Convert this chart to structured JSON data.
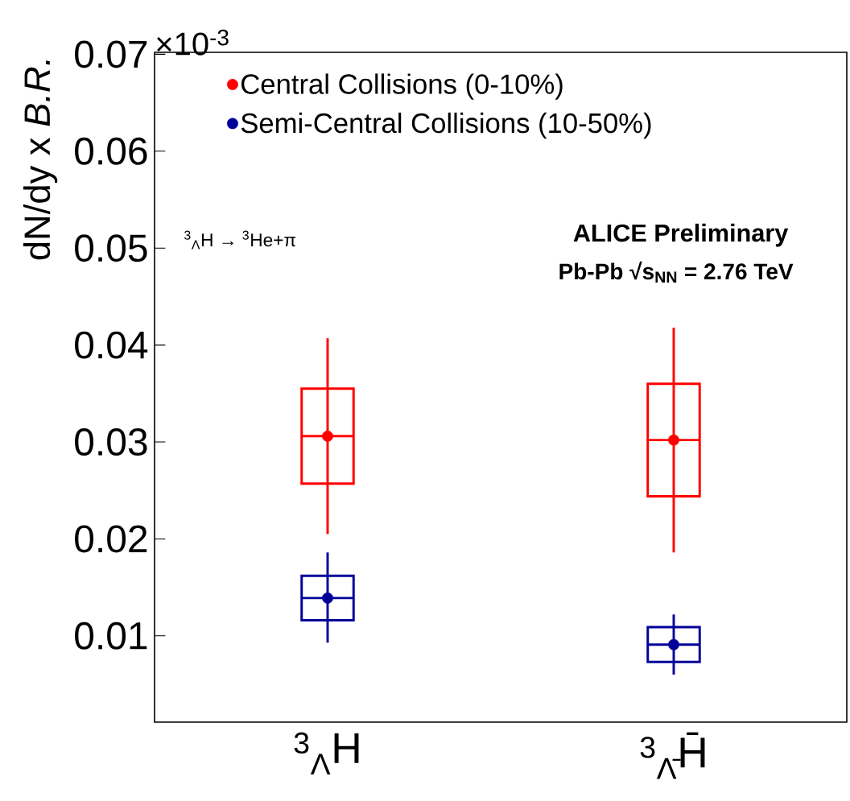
{
  "chart_data": {
    "type": "box",
    "categories": [
      "$^{3}$$_{Λ}$H",
      "$^{3}$$_{Λ̄}$H̄"
    ],
    "ylabel": "dN/dy x *B.R.*",
    "ylim": [
      0.0011,
      0.0702
    ],
    "yticks": [
      0.01,
      0.02,
      0.03,
      0.04,
      0.05,
      0.06,
      0.07
    ],
    "legend": "top left",
    "annotations": [
      "×10$^{-3}$",
      "$^{3}$$_{Λ}$H → $^{3}$He+π",
      "ALICE Preliminary",
      "Pb-Pb √s$_{NN}$ = 2.76 TeV"
    ],
    "series": [
      {
        "name": "Central Collisions (0-10%)",
        "color": "#ff0000",
        "boxes": [
          {
            "low": 0.0205,
            "q1": 0.0257,
            "median": 0.0306,
            "q3": 0.0355,
            "high": 0.0407,
            "mean": 0.0306
          },
          {
            "low": 0.0186,
            "q1": 0.0244,
            "median": 0.0302,
            "q3": 0.036,
            "high": 0.0418,
            "mean": 0.0302
          }
        ]
      },
      {
        "name": "Semi-Central Collisions (10-50%)",
        "color": "#000099",
        "boxes": [
          {
            "low": 0.0093,
            "q1": 0.0116,
            "median": 0.0139,
            "q3": 0.0162,
            "high": 0.0186,
            "mean": 0.0139
          },
          {
            "low": 0.006,
            "q1": 0.0073,
            "median": 0.0091,
            "q3": 0.0109,
            "high": 0.0122,
            "mean": 0.0091
          }
        ]
      }
    ]
  }
}
